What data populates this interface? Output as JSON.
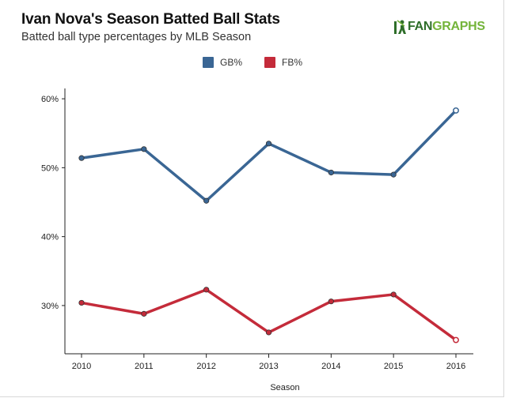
{
  "header": {
    "title": "Ivan Nova's Season Batted Ball Stats",
    "subtitle": "Batted ball type percentages by MLB Season"
  },
  "logo": {
    "part1": "FAN",
    "part2": "GRAPHS"
  },
  "colors": {
    "gb": "#3a6694",
    "fb": "#c42b3a",
    "axis": "#222222"
  },
  "chart_data": {
    "type": "line",
    "title": "Ivan Nova's Season Batted Ball Stats",
    "subtitle": "Batted ball type percentages by MLB Season",
    "xlabel": "Season",
    "ylabel": "",
    "x": [
      "2010",
      "2011",
      "2012",
      "2013",
      "2014",
      "2015",
      "2016"
    ],
    "yticks": [
      "30%",
      "40%",
      "50%",
      "60%"
    ],
    "ytick_values": [
      30,
      40,
      50,
      60
    ],
    "ylim": [
      23,
      61.5
    ],
    "legend_position": "top-center",
    "grid": false,
    "series": [
      {
        "name": "GB%",
        "values": [
          51.4,
          52.7,
          45.2,
          53.5,
          49.3,
          49.0,
          58.3
        ]
      },
      {
        "name": "FB%",
        "values": [
          30.4,
          28.8,
          32.3,
          26.1,
          30.6,
          31.6,
          25.0
        ]
      }
    ]
  }
}
